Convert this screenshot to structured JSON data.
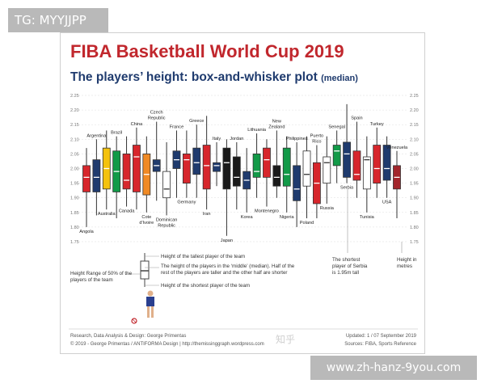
{
  "tags": {
    "top_left": "TG: MYYJJPP",
    "bottom_right": "www.zh-hanz-9you.com",
    "zh_watermark": "知乎"
  },
  "header": {
    "title": "FIBA Basketball World Cup 2019",
    "subtitle_main": "The players’ height: box-and-whisker plot",
    "subtitle_small": "(median)"
  },
  "legend": {
    "tallest": "Height of the tallest player of the team",
    "middle_1": "The height of the players in the ‘middle’ (median). Half of the",
    "middle_2": "rest of the players are taller and the other half are shorter",
    "range_1": "Height Range of 50% of the",
    "range_2": "players of the team",
    "shortest": "Height of the shortest player of the team"
  },
  "notes": {
    "serbia_1": "The shortest",
    "serbia_2": "player of Serbia",
    "serbia_3": "is 1.95m tall",
    "units_1": "Height in",
    "units_2": "metres"
  },
  "footer": {
    "credit": "Research, Data Analysis & Design: George Primentas",
    "copyright": "© 2019 - George Primentas / ANTIFORMA Design | http://themissinggraph.wordpress.com",
    "updated": "Updated: 1 / 07 September 2019",
    "sources": "Sources: FIBA, Sports Reference"
  },
  "chart_data": {
    "type": "box",
    "ylim": [
      1.75,
      2.25
    ],
    "yticks": [
      "1.75",
      "1.80",
      "1.85",
      "1.90",
      "1.95",
      "2.00",
      "2.05",
      "2.10",
      "2.15",
      "2.20",
      "2.25"
    ],
    "grid": true,
    "teams": [
      {
        "name": "Angola",
        "label_pos": "bottom",
        "color": "#d7262c",
        "min": 1.8,
        "q1": 1.92,
        "median": 1.97,
        "q3": 2.01,
        "max": 2.07
      },
      {
        "name": "Argentina",
        "label_pos": "top",
        "color": "#1f3b6e",
        "min": 1.84,
        "q1": 1.92,
        "median": 1.97,
        "q3": 2.03,
        "max": 2.1
      },
      {
        "name": "Australia",
        "label_pos": "bottom",
        "color": "#f4c20d",
        "min": 1.86,
        "q1": 1.93,
        "median": 2.0,
        "q3": 2.07,
        "max": 2.13
      },
      {
        "name": "Brazil",
        "label_pos": "top",
        "color": "#129a48",
        "min": 1.83,
        "q1": 1.92,
        "median": 1.99,
        "q3": 2.06,
        "max": 2.11
      },
      {
        "name": "Canada",
        "label_pos": "bottom",
        "color": "#d7262c",
        "min": 1.87,
        "q1": 1.93,
        "median": 1.96,
        "q3": 2.05,
        "max": 2.11
      },
      {
        "name": "China",
        "label_pos": "top",
        "color": "#d7262c",
        "min": 1.86,
        "q1": 1.92,
        "median": 2.04,
        "q3": 2.08,
        "max": 2.14
      },
      {
        "name": "Cote d'Ivoire",
        "label_pos": "bottom",
        "color": "#f08a24",
        "min": 1.85,
        "q1": 1.91,
        "median": 1.98,
        "q3": 2.05,
        "max": 2.11
      },
      {
        "name": "Czech Republic",
        "label_pos": "top",
        "color": "#1f3b6e",
        "min": 1.89,
        "q1": 1.99,
        "median": 2.01,
        "q3": 2.03,
        "max": 2.16
      },
      {
        "name": "Dominican Republic",
        "label_pos": "bottom",
        "color": "#ffffff",
        "min": 1.84,
        "q1": 1.9,
        "median": 1.93,
        "q3": 1.99,
        "max": 2.09
      },
      {
        "name": "France",
        "label_pos": "top",
        "color": "#1f3b6e",
        "min": 1.9,
        "q1": 2.0,
        "median": 2.03,
        "q3": 2.06,
        "max": 2.13
      },
      {
        "name": "Germany",
        "label_pos": "bottom",
        "color": "#d7262c",
        "min": 1.9,
        "q1": 1.95,
        "median": 2.03,
        "q3": 2.05,
        "max": 2.13
      },
      {
        "name": "Greece",
        "label_pos": "top",
        "color": "#1f3b6e",
        "min": 1.9,
        "q1": 1.98,
        "median": 2.02,
        "q3": 2.07,
        "max": 2.15
      },
      {
        "name": "Iran",
        "label_pos": "bottom",
        "color": "#d7262c",
        "min": 1.86,
        "q1": 1.93,
        "median": 2.01,
        "q3": 2.08,
        "max": 2.18
      },
      {
        "name": "Italy",
        "label_pos": "top",
        "color": "#1f3b6e",
        "min": 1.94,
        "q1": 1.99,
        "median": 2.01,
        "q3": 2.02,
        "max": 2.09
      },
      {
        "name": "Japan",
        "label_pos": "bottom",
        "color": "#1a1a1a",
        "min": 1.77,
        "q1": 1.93,
        "median": 2.02,
        "q3": 2.07,
        "max": 2.1
      },
      {
        "name": "Jordan",
        "label_pos": "top",
        "color": "#1a1a1a",
        "min": 1.86,
        "q1": 1.94,
        "median": 1.97,
        "q3": 2.04,
        "max": 2.09
      },
      {
        "name": "Korea",
        "label_pos": "bottom",
        "color": "#1f3b6e",
        "min": 1.85,
        "q1": 1.93,
        "median": 1.96,
        "q3": 1.99,
        "max": 2.07
      },
      {
        "name": "Lithuania",
        "label_pos": "top",
        "color": "#129a48",
        "min": 1.9,
        "q1": 1.97,
        "median": 1.99,
        "q3": 2.05,
        "max": 2.12
      },
      {
        "name": "Montenegro",
        "label_pos": "bottom",
        "color": "#d7262c",
        "min": 1.87,
        "q1": 1.97,
        "median": 2.03,
        "q3": 2.07,
        "max": 2.1
      },
      {
        "name": "New Zealand",
        "label_pos": "top",
        "color": "#1a1a1a",
        "min": 1.9,
        "q1": 1.94,
        "median": 1.97,
        "q3": 2.01,
        "max": 2.13
      },
      {
        "name": "Nigeria",
        "label_pos": "bottom",
        "color": "#129a48",
        "min": 1.85,
        "q1": 1.94,
        "median": 1.98,
        "q3": 2.07,
        "max": 2.11
      },
      {
        "name": "Philippines",
        "label_pos": "top",
        "color": "#1f3b6e",
        "min": 1.8,
        "q1": 1.89,
        "median": 1.93,
        "q3": 2.01,
        "max": 2.09
      },
      {
        "name": "Poland",
        "label_pos": "bottom",
        "color": "#ffffff",
        "min": 1.83,
        "q1": 1.94,
        "median": 1.98,
        "q3": 2.06,
        "max": 2.11
      },
      {
        "name": "Puerto Rico",
        "label_pos": "top",
        "color": "#d7262c",
        "min": 1.83,
        "q1": 1.88,
        "median": 1.95,
        "q3": 2.02,
        "max": 2.08
      },
      {
        "name": "Russia",
        "label_pos": "bottom",
        "color": "#ffffff",
        "min": 1.88,
        "q1": 1.95,
        "median": 2.02,
        "q3": 2.04,
        "max": 2.11
      },
      {
        "name": "Senegal",
        "label_pos": "top",
        "color": "#129a48",
        "min": 1.95,
        "q1": 2.01,
        "median": 2.06,
        "q3": 2.08,
        "max": 2.13
      },
      {
        "name": "Serbia",
        "label_pos": "bottom",
        "color": "#1f3b6e",
        "min": 1.95,
        "q1": 1.97,
        "median": 2.05,
        "q3": 2.09,
        "max": 2.22
      },
      {
        "name": "Spain",
        "label_pos": "top",
        "color": "#d7262c",
        "min": 1.9,
        "q1": 1.96,
        "median": 1.98,
        "q3": 2.06,
        "max": 2.16
      },
      {
        "name": "Tunisia",
        "label_pos": "bottom",
        "color": "#ffffff",
        "min": 1.85,
        "q1": 1.93,
        "median": 2.03,
        "q3": 2.04,
        "max": 2.11
      },
      {
        "name": "Turkey",
        "label_pos": "top",
        "color": "#d7262c",
        "min": 1.9,
        "q1": 1.95,
        "median": 2.0,
        "q3": 2.08,
        "max": 2.14
      },
      {
        "name": "USA",
        "label_pos": "bottom",
        "color": "#1f3b6e",
        "min": 1.9,
        "q1": 1.96,
        "median": 2.0,
        "q3": 2.08,
        "max": 2.11
      },
      {
        "name": "Venezuela",
        "label_pos": "top",
        "color": "#a3262c",
        "min": 1.83,
        "q1": 1.93,
        "median": 1.97,
        "q3": 2.01,
        "max": 2.06
      }
    ]
  }
}
